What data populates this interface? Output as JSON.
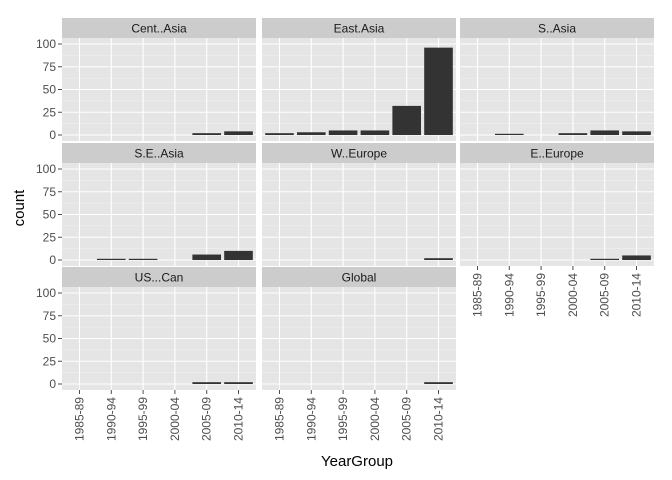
{
  "chart_data": {
    "type": "bar",
    "xlabel": "YearGroup",
    "ylabel": "count",
    "ylim": [
      0,
      100
    ],
    "yticks": [
      0,
      25,
      50,
      75,
      100
    ],
    "categories": [
      "1985-89",
      "1990-94",
      "1995-99",
      "2000-04",
      "2005-09",
      "2010-14"
    ],
    "grid": true,
    "legend": "none",
    "colors": {
      "bar": "#333333",
      "panel": "#e5e5e5",
      "strip": "#cccccc"
    },
    "facets": [
      {
        "label": "Cent..Asia",
        "values": [
          0,
          0,
          0,
          0,
          2,
          4
        ]
      },
      {
        "label": "East.Asia",
        "values": [
          2,
          3,
          5,
          5,
          32,
          96
        ]
      },
      {
        "label": "S..Asia",
        "values": [
          0,
          1,
          0,
          2,
          5,
          4
        ]
      },
      {
        "label": "S.E..Asia",
        "values": [
          0,
          1,
          1,
          0,
          6,
          10
        ]
      },
      {
        "label": "W..Europe",
        "values": [
          0,
          0,
          0,
          0,
          0,
          2
        ]
      },
      {
        "label": "E..Europe",
        "values": [
          0,
          0,
          0,
          0,
          1,
          5
        ]
      },
      {
        "label": "US...Can",
        "values": [
          0,
          0,
          0,
          0,
          2,
          2
        ]
      },
      {
        "label": "Global",
        "values": [
          0,
          0,
          0,
          0,
          0,
          2
        ]
      }
    ]
  }
}
